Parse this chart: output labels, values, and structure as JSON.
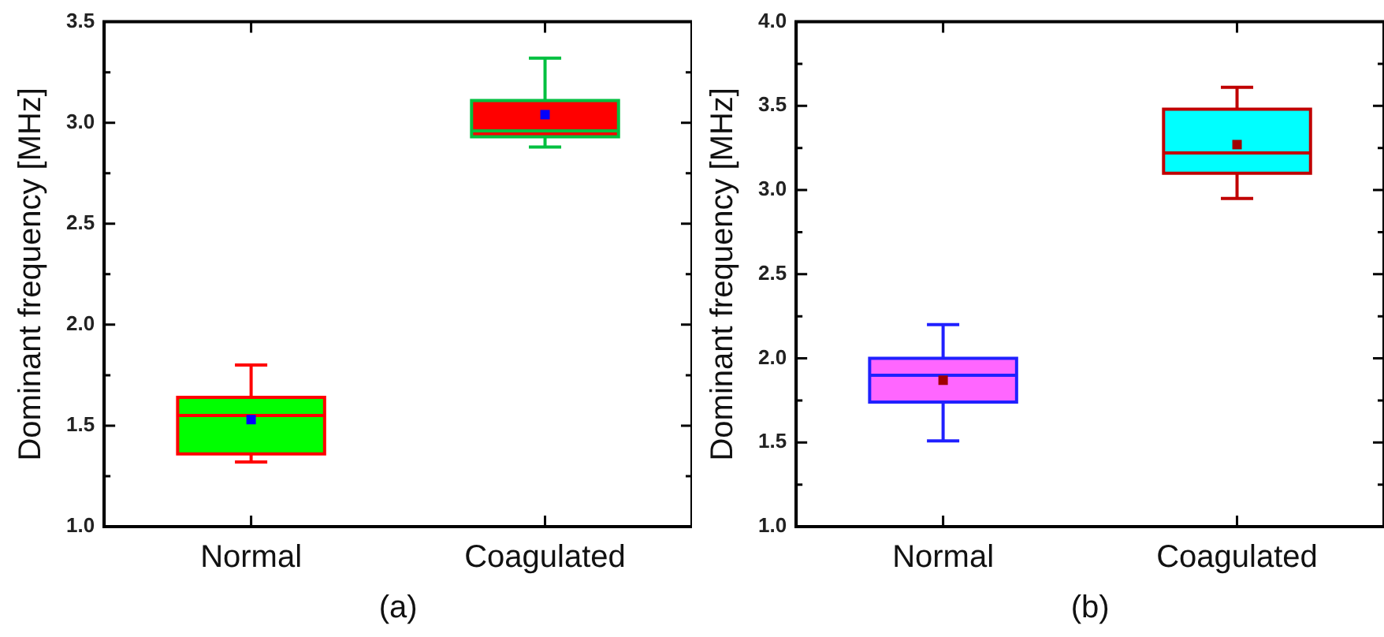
{
  "chart_data": [
    {
      "type": "box",
      "xlabel": "(a)",
      "ylabel": "Dominant frequency [MHz]",
      "categories": [
        "Normal",
        "Coagulated"
      ],
      "boxes": [
        {
          "low": 1.32,
          "q1": 1.36,
          "median": 1.55,
          "q3": 1.64,
          "high": 1.8,
          "mean": 1.53
        },
        {
          "low": 2.88,
          "q1": 2.93,
          "median": 2.96,
          "q3": 3.11,
          "high": 3.32,
          "mean": 3.04
        }
      ],
      "colors": [
        "#00ff00",
        "#ff0000"
      ],
      "ylim": [
        1.0,
        3.5
      ],
      "yticks": [
        {
          "value": 1.0,
          "label": "1.0"
        },
        {
          "value": 1.25,
          "label": null
        },
        {
          "value": 1.5,
          "label": "1.5"
        },
        {
          "value": 1.75,
          "label": null
        },
        {
          "value": 2.0,
          "label": "2.0"
        },
        {
          "value": 2.25,
          "label": null
        },
        {
          "value": 2.5,
          "label": "2.5"
        },
        {
          "value": 2.75,
          "label": null
        },
        {
          "value": 3.0,
          "label": "3.0"
        },
        {
          "value": 3.25,
          "label": null
        },
        {
          "value": 3.5,
          "label": "3.5"
        }
      ],
      "grid": false,
      "legend": false
    },
    {
      "type": "box",
      "xlabel": "(b)",
      "ylabel": "Dominant frequency [MHz]",
      "categories": [
        "Normal",
        "Coagulated"
      ],
      "boxes": [
        {
          "low": 1.51,
          "q1": 1.74,
          "median": 1.9,
          "q3": 2.0,
          "high": 2.2,
          "mean": 1.87
        },
        {
          "low": 2.95,
          "q1": 3.1,
          "median": 3.22,
          "q3": 3.48,
          "high": 3.61,
          "mean": 3.27
        }
      ],
      "colors": [
        "#ff66ff",
        "#00ffff"
      ],
      "ylim": [
        1.0,
        4.0
      ],
      "yticks": [
        {
          "value": 1.0,
          "label": "1.0"
        },
        {
          "value": 1.25,
          "label": null
        },
        {
          "value": 1.5,
          "label": "1.5"
        },
        {
          "value": 1.75,
          "label": null
        },
        {
          "value": 2.0,
          "label": "2.0"
        },
        {
          "value": 2.25,
          "label": null
        },
        {
          "value": 2.5,
          "label": "2.5"
        },
        {
          "value": 2.75,
          "label": null
        },
        {
          "value": 3.0,
          "label": "3.0"
        },
        {
          "value": 3.25,
          "label": null
        },
        {
          "value": 3.5,
          "label": "3.5"
        },
        {
          "value": 3.75,
          "label": null
        },
        {
          "value": 4.0,
          "label": "4.0"
        }
      ],
      "grid": false,
      "legend": false
    }
  ]
}
